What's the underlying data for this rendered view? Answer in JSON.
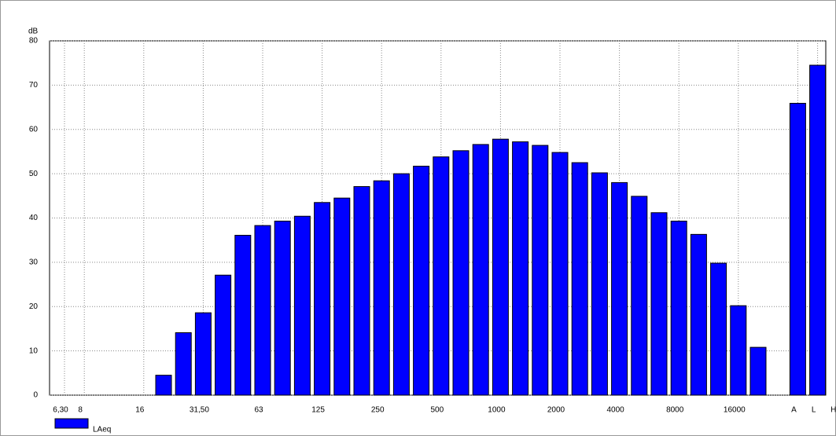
{
  "chart_data": {
    "type": "bar",
    "y_label": "dB",
    "categories": [
      "6,30",
      "8",
      null,
      null,
      "16",
      null,
      null,
      "31,50",
      null,
      null,
      "63",
      null,
      null,
      "125",
      null,
      null,
      "250",
      null,
      null,
      "500",
      null,
      null,
      "1000",
      null,
      null,
      "2000",
      null,
      null,
      "4000",
      null,
      null,
      "8000",
      null,
      null,
      "16000",
      null,
      null,
      "A",
      "L",
      "H"
    ],
    "series": [
      {
        "name": "LAeq",
        "color": "#0000ff",
        "values": [
          0,
          0,
          0,
          0,
          0,
          4.5,
          14.1,
          18.6,
          27.1,
          36.1,
          38.3,
          39.3,
          40.4,
          43.5,
          44.5,
          47.1,
          48.4,
          50.0,
          51.7,
          53.8,
          55.2,
          56.6,
          57.8,
          57.2,
          56.4,
          54.8,
          52.5,
          50.2,
          48.0,
          44.9,
          41.2,
          39.3,
          36.3,
          29.8,
          20.2,
          10.8,
          0,
          65.9,
          74.5,
          null
        ]
      }
    ],
    "ylim": [
      0,
      80
    ],
    "yticks": [
      0,
      10,
      20,
      30,
      40,
      50,
      60,
      70,
      80
    ],
    "grid": true,
    "legend": "bottom-left"
  }
}
